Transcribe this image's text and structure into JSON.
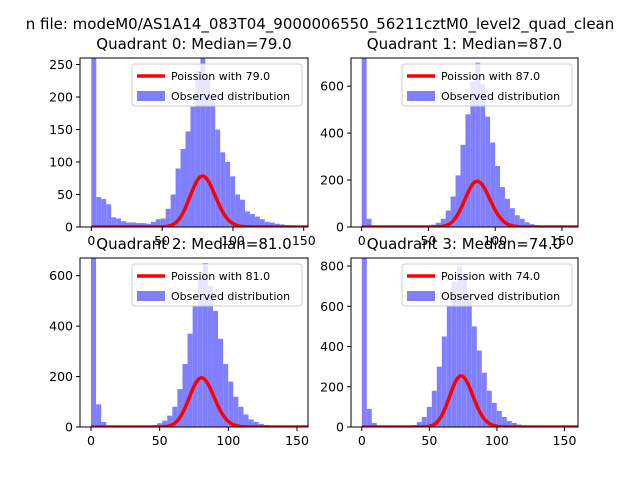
{
  "figure": {
    "suptitle": "n file: modeM0/AS1A14_083T04_9000006550_56211cztM0_level2_quad_clean"
  },
  "colors": {
    "bar": "#8080ff",
    "line": "#ff0000",
    "axis": "#000000"
  },
  "chart_data": [
    {
      "type": "bar",
      "title": "Quadrant 0: Median=79.0",
      "xlim": [
        -8,
        153
      ],
      "ylim": [
        0,
        260
      ],
      "xticks": [
        0,
        50,
        100,
        150
      ],
      "yticks": [
        0,
        50,
        100,
        150,
        200,
        250
      ],
      "bin_width": 3.5,
      "bin_centers": [
        1.75,
        5.25,
        8.75,
        12.25,
        15.75,
        19.25,
        22.75,
        26.25,
        29.75,
        33.25,
        36.75,
        40.25,
        43.75,
        47.25,
        50.75,
        54.25,
        57.75,
        61.25,
        64.75,
        68.25,
        71.75,
        75.25,
        78.75,
        82.25,
        85.75,
        89.25,
        92.75,
        96.25,
        99.75,
        103.25,
        106.75,
        110.25,
        113.75,
        117.25,
        120.75,
        124.25,
        127.75,
        131.25,
        134.75,
        138.25,
        141.75
      ],
      "counts": [
        260,
        46,
        43,
        35,
        15,
        13,
        9,
        7,
        7,
        6,
        6,
        5,
        8,
        12,
        13,
        28,
        50,
        90,
        120,
        147,
        185,
        240,
        262,
        230,
        198,
        150,
        115,
        100,
        78,
        50,
        42,
        24,
        20,
        16,
        12,
        8,
        7,
        5,
        4,
        3,
        2
      ],
      "legend": [
        {
          "label": "Poission with 79.0",
          "kind": "line"
        },
        {
          "label": "Observed distribution",
          "kind": "patch"
        }
      ],
      "poisson_mean": 79.0,
      "poisson_scale": 1745
    },
    {
      "type": "bar",
      "title": "Quadrant 1: Median=87.0",
      "xlim": [
        -8,
        162
      ],
      "ylim": [
        0,
        720
      ],
      "xticks": [
        0,
        50,
        100,
        150
      ],
      "yticks": [
        0,
        200,
        400,
        600
      ],
      "bin_width": 3.7,
      "bin_centers": [
        1.85,
        5.55,
        9.25,
        12.95,
        16.65,
        20.35,
        24.05,
        27.75,
        31.45,
        35.15,
        38.85,
        42.55,
        46.25,
        49.95,
        53.65,
        57.35,
        61.05,
        64.75,
        68.45,
        72.15,
        75.85,
        79.55,
        83.25,
        86.95,
        90.65,
        94.35,
        98.05,
        101.75,
        105.45,
        109.15,
        112.85,
        116.55,
        120.25,
        123.95,
        127.65,
        131.35,
        135.05,
        138.75,
        142.45,
        146.15,
        149.85
      ],
      "counts": [
        720,
        35,
        4,
        3,
        3,
        2,
        2,
        2,
        2,
        2,
        2,
        3,
        4,
        6,
        10,
        18,
        35,
        70,
        130,
        220,
        350,
        480,
        620,
        700,
        610,
        470,
        360,
        260,
        170,
        120,
        80,
        50,
        35,
        20,
        12,
        8,
        5,
        4,
        3,
        2,
        1
      ],
      "legend": [
        {
          "label": "Poission with 87.0",
          "kind": "line"
        },
        {
          "label": "Observed distribution",
          "kind": "patch"
        }
      ],
      "poisson_mean": 87.0,
      "poisson_scale": 4555
    },
    {
      "type": "bar",
      "title": "Quadrant 2: Median=81.0",
      "xlim": [
        -8,
        158
      ],
      "ylim": [
        0,
        670
      ],
      "xticks": [
        0,
        50,
        100,
        150
      ],
      "yticks": [
        0,
        200,
        400,
        600
      ],
      "bin_width": 3.7,
      "bin_centers": [
        1.85,
        5.55,
        9.25,
        12.95,
        16.65,
        20.35,
        24.05,
        27.75,
        31.45,
        35.15,
        38.85,
        42.55,
        46.25,
        49.95,
        53.65,
        57.35,
        61.05,
        64.75,
        68.45,
        72.15,
        75.85,
        79.55,
        83.25,
        86.95,
        90.65,
        94.35,
        98.05,
        101.75,
        105.45,
        109.15,
        112.85,
        116.55,
        120.25,
        123.95,
        127.65,
        131.35,
        135.05,
        138.75,
        142.45,
        146.15,
        149.85
      ],
      "counts": [
        670,
        90,
        20,
        5,
        4,
        3,
        3,
        2,
        2,
        2,
        3,
        5,
        8,
        15,
        25,
        45,
        80,
        150,
        250,
        370,
        480,
        590,
        650,
        560,
        460,
        350,
        250,
        180,
        120,
        80,
        50,
        30,
        20,
        12,
        8,
        5,
        4,
        3,
        2,
        1,
        1
      ],
      "legend": [
        {
          "label": "Poission with 81.0",
          "kind": "line"
        },
        {
          "label": "Observed distribution",
          "kind": "patch"
        }
      ],
      "poisson_mean": 81.0,
      "poisson_scale": 4400
    },
    {
      "type": "bar",
      "title": "Quadrant 3: Median=74.0",
      "xlim": [
        -8,
        160
      ],
      "ylim": [
        0,
        840
      ],
      "xticks": [
        0,
        50,
        100,
        150
      ],
      "yticks": [
        0,
        200,
        400,
        600,
        800
      ],
      "bin_width": 3.7,
      "bin_centers": [
        1.85,
        5.55,
        9.25,
        12.95,
        16.65,
        20.35,
        24.05,
        27.75,
        31.45,
        35.15,
        38.85,
        42.55,
        46.25,
        49.95,
        53.65,
        57.35,
        61.05,
        64.75,
        68.45,
        72.15,
        75.85,
        79.55,
        83.25,
        86.95,
        90.65,
        94.35,
        98.05,
        101.75,
        105.45,
        109.15,
        112.85,
        116.55,
        120.25,
        123.95,
        127.65,
        131.35,
        135.05,
        138.75,
        142.45,
        146.15,
        149.85
      ],
      "counts": [
        840,
        90,
        20,
        4,
        3,
        2,
        2,
        2,
        3,
        5,
        10,
        25,
        50,
        100,
        180,
        300,
        450,
        600,
        720,
        800,
        760,
        640,
        500,
        380,
        270,
        180,
        120,
        80,
        50,
        30,
        20,
        12,
        8,
        5,
        3,
        2,
        2,
        1,
        1,
        1,
        1
      ],
      "legend": [
        {
          "label": "Poission with 74.0",
          "kind": "line"
        },
        {
          "label": "Observed distribution",
          "kind": "patch"
        }
      ],
      "poisson_mean": 74.0,
      "poisson_scale": 5480
    }
  ]
}
